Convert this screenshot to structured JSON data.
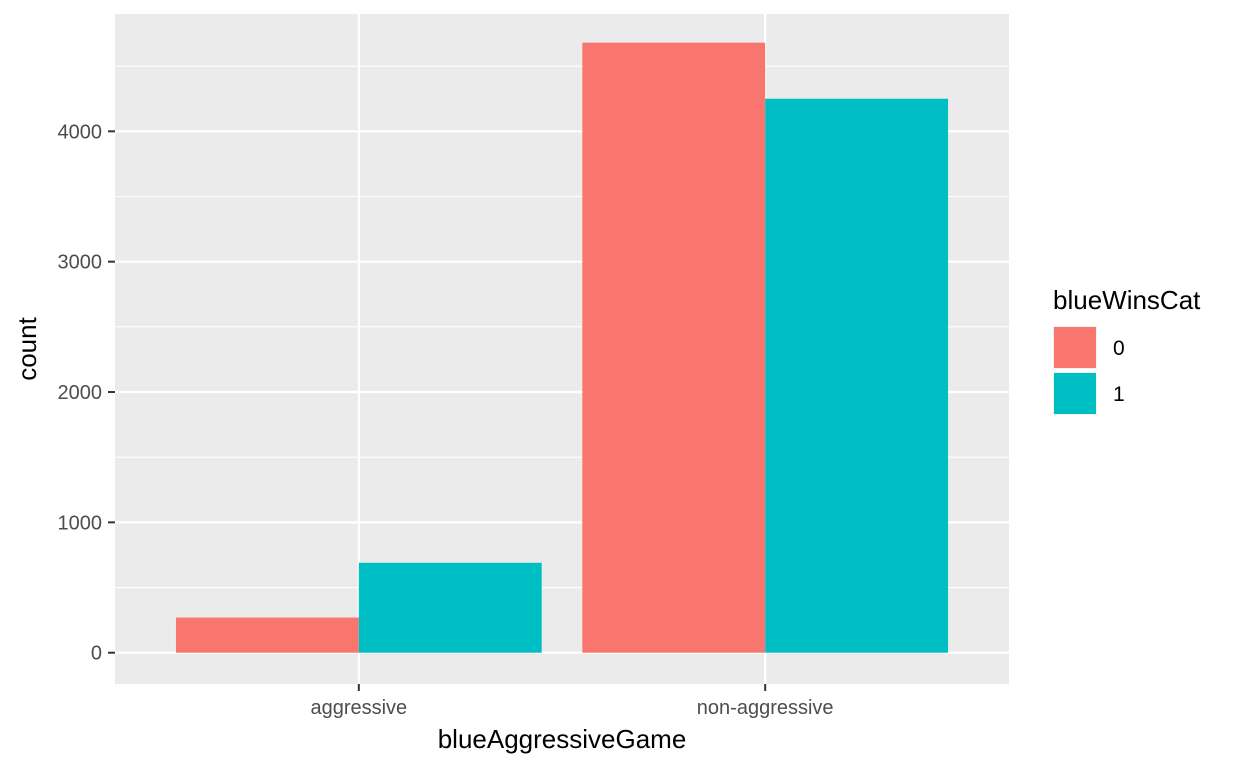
{
  "chart_data": {
    "type": "bar",
    "xlabel": "blueAggressiveGame",
    "ylabel": "count",
    "categories": [
      "aggressive",
      "non-aggressive"
    ],
    "series": [
      {
        "name": "0",
        "color": "#F8766D",
        "values": [
          270,
          4680
        ]
      },
      {
        "name": "1",
        "color": "#00BFC4",
        "values": [
          690,
          4250
        ]
      }
    ],
    "ylim": [
      -240,
      4900
    ],
    "yticks": [
      0,
      1000,
      2000,
      3000,
      4000
    ],
    "legend": {
      "title": "blueWinsCat",
      "position": "right"
    },
    "grid": true,
    "panel_background": "#EBEBEB"
  }
}
